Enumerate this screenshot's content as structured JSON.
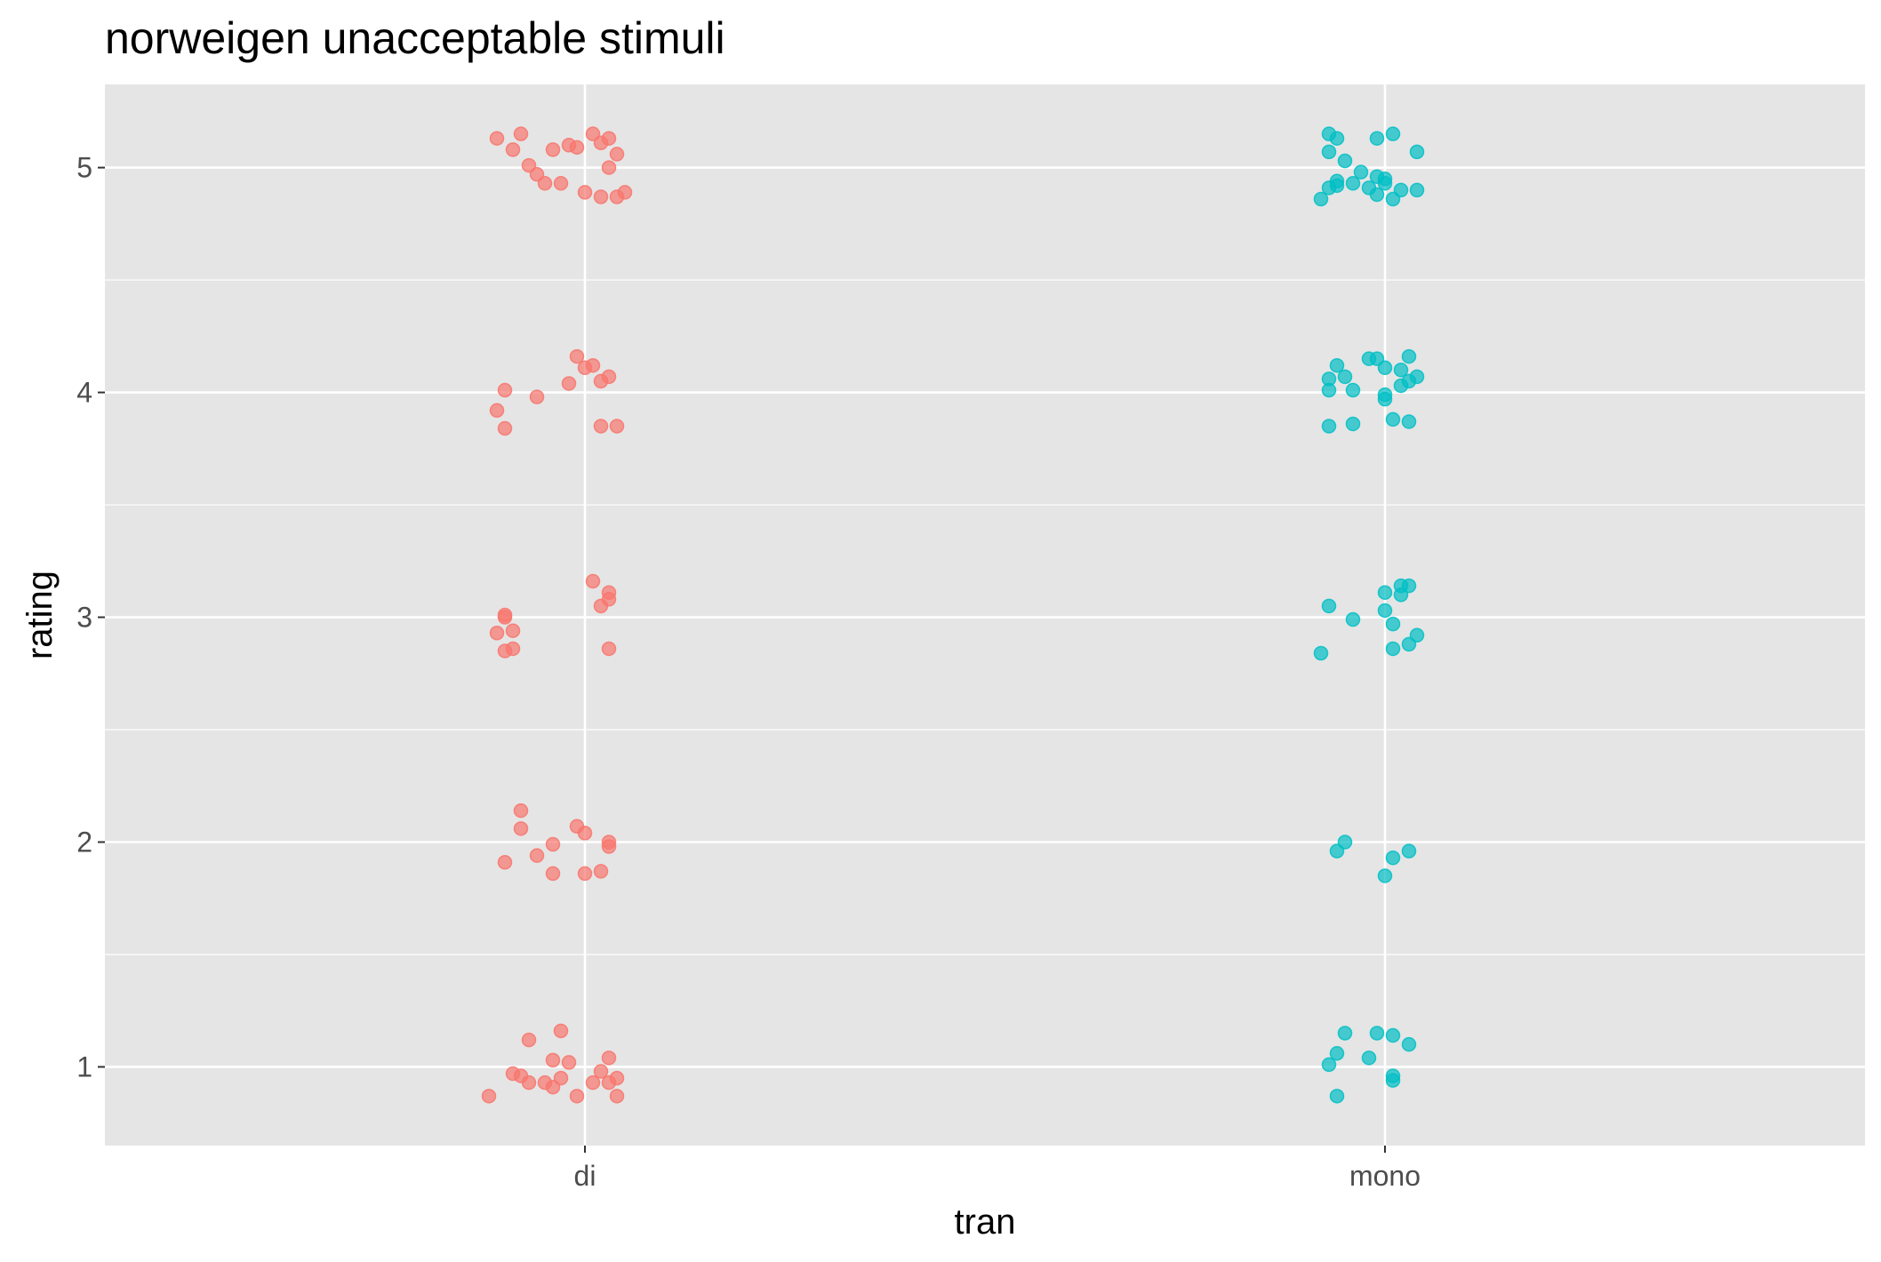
{
  "chart_data": {
    "type": "scatter",
    "title": "norweigen unacceptable stimuli",
    "xlabel": "tran",
    "ylabel": "rating",
    "categories": [
      "di",
      "mono"
    ],
    "y_ticks": [
      "1",
      "2",
      "3",
      "4",
      "5"
    ],
    "ylim": [
      0.65,
      5.37
    ],
    "grid": true,
    "legend": "none",
    "style": {
      "panel_background": "#e5e5e5",
      "grid_color": "#ffffff",
      "point_opacity": 0.7
    },
    "series": [
      {
        "category": "di",
        "color": "#f8766d",
        "points": [
          {
            "x": 0.89,
            "y": 5.13
          },
          {
            "x": 0.91,
            "y": 5.08
          },
          {
            "x": 0.92,
            "y": 5.15
          },
          {
            "x": 0.96,
            "y": 5.08
          },
          {
            "x": 0.98,
            "y": 5.1
          },
          {
            "x": 0.99,
            "y": 5.09
          },
          {
            "x": 1.01,
            "y": 5.15
          },
          {
            "x": 1.02,
            "y": 5.11
          },
          {
            "x": 1.03,
            "y": 5.13
          },
          {
            "x": 1.04,
            "y": 5.06
          },
          {
            "x": 0.93,
            "y": 5.01
          },
          {
            "x": 0.94,
            "y": 4.97
          },
          {
            "x": 0.95,
            "y": 4.93
          },
          {
            "x": 0.97,
            "y": 4.93
          },
          {
            "x": 1.0,
            "y": 4.89
          },
          {
            "x": 1.02,
            "y": 4.87
          },
          {
            "x": 1.03,
            "y": 5.0
          },
          {
            "x": 1.04,
            "y": 4.87
          },
          {
            "x": 1.05,
            "y": 4.89
          },
          {
            "x": 0.9,
            "y": 4.01
          },
          {
            "x": 0.94,
            "y": 3.98
          },
          {
            "x": 0.89,
            "y": 3.92
          },
          {
            "x": 0.9,
            "y": 3.84
          },
          {
            "x": 0.99,
            "y": 4.16
          },
          {
            "x": 1.0,
            "y": 4.11
          },
          {
            "x": 1.01,
            "y": 4.12
          },
          {
            "x": 0.98,
            "y": 4.04
          },
          {
            "x": 1.03,
            "y": 4.07
          },
          {
            "x": 1.02,
            "y": 4.05
          },
          {
            "x": 1.02,
            "y": 3.85
          },
          {
            "x": 1.04,
            "y": 3.85
          },
          {
            "x": 0.9,
            "y": 3.01
          },
          {
            "x": 0.9,
            "y": 3.0
          },
          {
            "x": 0.91,
            "y": 2.94
          },
          {
            "x": 0.89,
            "y": 2.93
          },
          {
            "x": 0.9,
            "y": 2.85
          },
          {
            "x": 0.91,
            "y": 2.86
          },
          {
            "x": 1.01,
            "y": 3.16
          },
          {
            "x": 1.03,
            "y": 3.11
          },
          {
            "x": 1.02,
            "y": 3.05
          },
          {
            "x": 1.03,
            "y": 3.08
          },
          {
            "x": 1.03,
            "y": 2.86
          },
          {
            "x": 0.92,
            "y": 2.14
          },
          {
            "x": 0.92,
            "y": 2.06
          },
          {
            "x": 0.96,
            "y": 1.99
          },
          {
            "x": 0.94,
            "y": 1.94
          },
          {
            "x": 0.9,
            "y": 1.91
          },
          {
            "x": 0.99,
            "y": 2.07
          },
          {
            "x": 1.0,
            "y": 2.04
          },
          {
            "x": 1.03,
            "y": 2.0
          },
          {
            "x": 1.03,
            "y": 1.98
          },
          {
            "x": 0.96,
            "y": 1.86
          },
          {
            "x": 1.0,
            "y": 1.86
          },
          {
            "x": 1.02,
            "y": 1.87
          },
          {
            "x": 0.97,
            "y": 1.16
          },
          {
            "x": 0.93,
            "y": 1.12
          },
          {
            "x": 0.96,
            "y": 1.03
          },
          {
            "x": 0.98,
            "y": 1.02
          },
          {
            "x": 1.03,
            "y": 1.04
          },
          {
            "x": 0.91,
            "y": 0.97
          },
          {
            "x": 0.92,
            "y": 0.96
          },
          {
            "x": 0.93,
            "y": 0.93
          },
          {
            "x": 0.95,
            "y": 0.93
          },
          {
            "x": 0.96,
            "y": 0.91
          },
          {
            "x": 0.97,
            "y": 0.95
          },
          {
            "x": 1.02,
            "y": 0.98
          },
          {
            "x": 1.01,
            "y": 0.93
          },
          {
            "x": 1.03,
            "y": 0.93
          },
          {
            "x": 1.04,
            "y": 0.95
          },
          {
            "x": 0.88,
            "y": 0.87
          },
          {
            "x": 0.99,
            "y": 0.87
          },
          {
            "x": 1.04,
            "y": 0.87
          }
        ]
      },
      {
        "category": "mono",
        "color": "#00bfc4",
        "points": [
          {
            "x": 1.93,
            "y": 5.15
          },
          {
            "x": 1.94,
            "y": 5.13
          },
          {
            "x": 1.99,
            "y": 5.13
          },
          {
            "x": 2.01,
            "y": 5.15
          },
          {
            "x": 1.93,
            "y": 5.07
          },
          {
            "x": 2.04,
            "y": 5.07
          },
          {
            "x": 1.95,
            "y": 5.03
          },
          {
            "x": 1.97,
            "y": 4.98
          },
          {
            "x": 1.99,
            "y": 4.96
          },
          {
            "x": 2.0,
            "y": 4.95
          },
          {
            "x": 1.94,
            "y": 4.94
          },
          {
            "x": 1.96,
            "y": 4.93
          },
          {
            "x": 1.94,
            "y": 4.92
          },
          {
            "x": 1.93,
            "y": 4.91
          },
          {
            "x": 1.98,
            "y": 4.91
          },
          {
            "x": 2.0,
            "y": 4.93
          },
          {
            "x": 2.02,
            "y": 4.9
          },
          {
            "x": 1.99,
            "y": 4.88
          },
          {
            "x": 2.04,
            "y": 4.9
          },
          {
            "x": 1.92,
            "y": 4.86
          },
          {
            "x": 2.01,
            "y": 4.86
          },
          {
            "x": 1.94,
            "y": 4.12
          },
          {
            "x": 1.98,
            "y": 4.15
          },
          {
            "x": 1.99,
            "y": 4.15
          },
          {
            "x": 2.0,
            "y": 4.11
          },
          {
            "x": 2.02,
            "y": 4.1
          },
          {
            "x": 2.03,
            "y": 4.16
          },
          {
            "x": 1.93,
            "y": 4.06
          },
          {
            "x": 1.95,
            "y": 4.07
          },
          {
            "x": 2.03,
            "y": 4.05
          },
          {
            "x": 2.04,
            "y": 4.07
          },
          {
            "x": 1.93,
            "y": 4.01
          },
          {
            "x": 1.96,
            "y": 4.01
          },
          {
            "x": 2.0,
            "y": 3.99
          },
          {
            "x": 2.0,
            "y": 3.97
          },
          {
            "x": 2.02,
            "y": 4.03
          },
          {
            "x": 1.93,
            "y": 3.85
          },
          {
            "x": 1.96,
            "y": 3.86
          },
          {
            "x": 2.01,
            "y": 3.88
          },
          {
            "x": 2.03,
            "y": 3.87
          },
          {
            "x": 2.0,
            "y": 3.11
          },
          {
            "x": 2.02,
            "y": 3.14
          },
          {
            "x": 2.03,
            "y": 3.14
          },
          {
            "x": 2.02,
            "y": 3.1
          },
          {
            "x": 1.93,
            "y": 3.05
          },
          {
            "x": 2.0,
            "y": 3.03
          },
          {
            "x": 1.96,
            "y": 2.99
          },
          {
            "x": 2.01,
            "y": 2.97
          },
          {
            "x": 2.04,
            "y": 2.92
          },
          {
            "x": 2.03,
            "y": 2.88
          },
          {
            "x": 2.01,
            "y": 2.86
          },
          {
            "x": 1.92,
            "y": 2.84
          },
          {
            "x": 1.95,
            "y": 2.0
          },
          {
            "x": 1.94,
            "y": 1.96
          },
          {
            "x": 2.03,
            "y": 1.96
          },
          {
            "x": 2.01,
            "y": 1.93
          },
          {
            "x": 2.0,
            "y": 1.85
          },
          {
            "x": 1.95,
            "y": 1.15
          },
          {
            "x": 1.99,
            "y": 1.15
          },
          {
            "x": 2.01,
            "y": 1.14
          },
          {
            "x": 2.03,
            "y": 1.1
          },
          {
            "x": 1.94,
            "y": 1.06
          },
          {
            "x": 1.98,
            "y": 1.04
          },
          {
            "x": 1.93,
            "y": 1.01
          },
          {
            "x": 2.01,
            "y": 0.96
          },
          {
            "x": 2.01,
            "y": 0.94
          },
          {
            "x": 1.94,
            "y": 0.87
          }
        ]
      }
    ]
  }
}
